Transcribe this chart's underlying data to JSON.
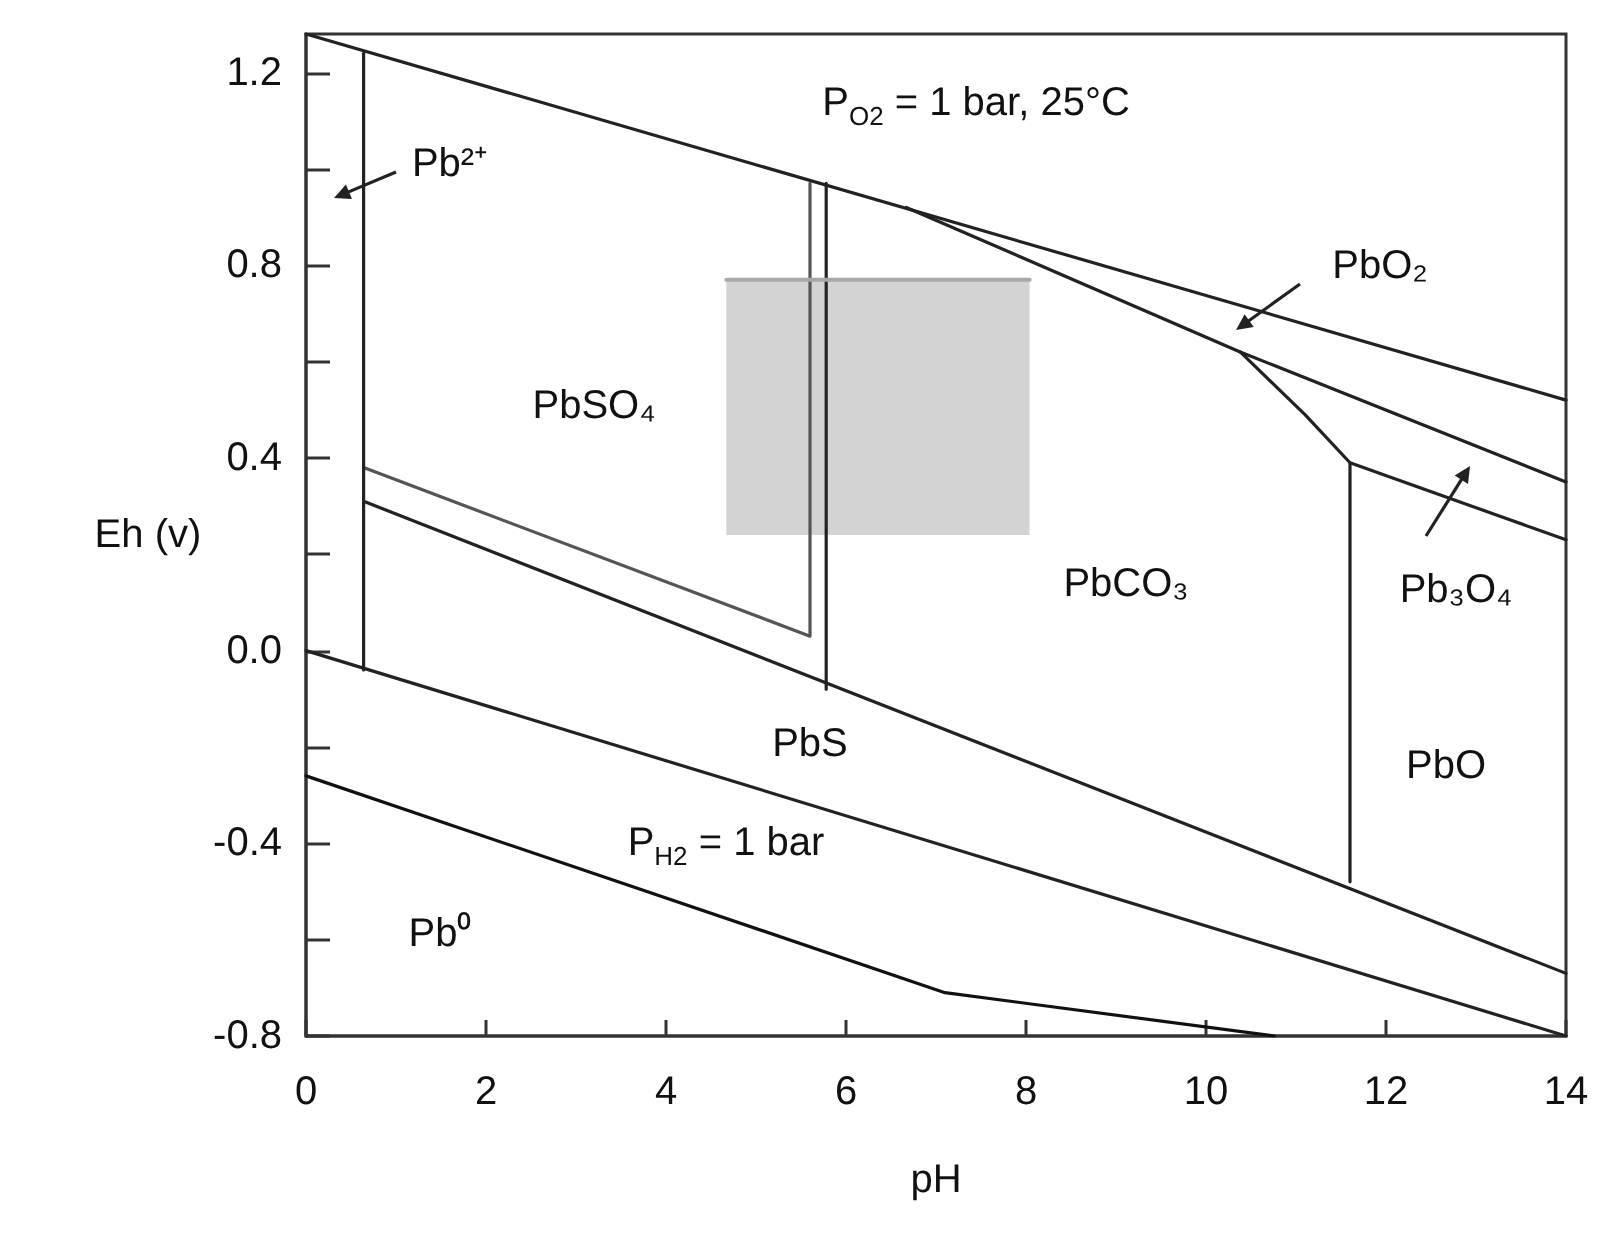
{
  "chart_data": {
    "type": "line",
    "xlabel": "pH",
    "ylabel": "Eh (v)",
    "xlim": [
      0,
      14
    ],
    "xticks": [
      0,
      2,
      4,
      6,
      8,
      10,
      12,
      14
    ],
    "ylim": [
      -0.8,
      1.28
    ],
    "yticks": [
      -0.8,
      {
        "value": -0.6,
        "label": null
      },
      -0.4,
      {
        "value": -0.2,
        "label": null
      },
      {
        "value": 0,
        "label": "0.0"
      },
      {
        "value": 0.2,
        "label": null
      },
      0.4,
      {
        "value": 0.6,
        "label": null
      },
      0.8,
      {
        "value": 1.0,
        "label": null
      },
      1.2
    ],
    "grid": false,
    "marker": "none",
    "line_style": "solid",
    "series": [
      {
        "color": "#222222",
        "x": [
          0,
          14
        ],
        "values": [
          1.28,
          0.52
        ]
      },
      {
        "color": "#222222",
        "x": [
          6.67,
          10.38,
          14
        ],
        "values": [
          0.92,
          0.62,
          0.35
        ]
      },
      {
        "color": "#222222",
        "x": [
          10.38,
          11.1,
          11.6,
          14
        ],
        "values": [
          0.62,
          0.49,
          0.39,
          0.23
        ]
      },
      {
        "color": "#222222",
        "x": [
          11.6,
          11.6
        ],
        "values": [
          0.39,
          -0.48
        ]
      },
      {
        "color": "#222222",
        "x": [
          0.64,
          14
        ],
        "values": [
          0.31,
          -0.67
        ]
      },
      {
        "color": "#555555",
        "x": [
          0.64,
          5.6,
          5.6
        ],
        "values": [
          0.38,
          0.03,
          0.97
        ]
      },
      {
        "color": "#222222",
        "x": [
          5.78,
          5.78
        ],
        "values": [
          0.97,
          -0.08
        ]
      },
      {
        "color": "#222222",
        "x": [
          0.64,
          0.64
        ],
        "values": [
          1.24,
          -0.04
        ]
      },
      {
        "color": "#222222",
        "x": [
          0,
          14
        ],
        "values": [
          0,
          -0.8
        ]
      },
      {
        "color": "#111111",
        "x": [
          0,
          7.1,
          10.76
        ],
        "values": [
          -0.26,
          -0.71,
          -0.8
        ]
      },
      {
        "color": "#a8a8a8",
        "x": [
          4.67,
          8.04
        ],
        "values": [
          0.77,
          0.77
        ],
        "lower": [
          0.24,
          0.24
        ],
        "upper": [
          0.77,
          0.77
        ]
      }
    ],
    "annotations": [
      "P$_{O2}$ = 1 bar, 25°C",
      "Pb²⁺",
      "PbSO₄",
      "PbO₂",
      "PbCO₃",
      "Pb₃O₄",
      "PbO",
      "PbS",
      "P$_{H2}$ = 1 bar",
      "Pb⁰"
    ]
  }
}
